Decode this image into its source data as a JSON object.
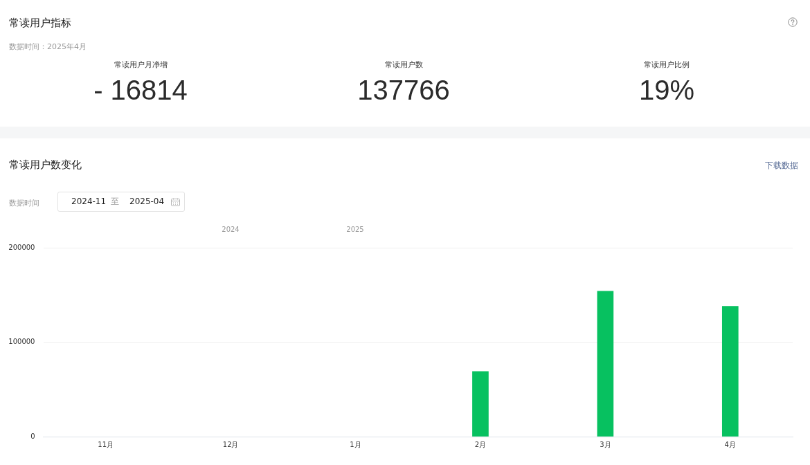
{
  "chart_data": [
    {
      "type": "other",
      "title": "常读用户指标",
      "subtitle": "数据时间：2025年4月",
      "annotations": [
        "常读用户月净增",
        "- 16814",
        "常读用户数",
        "137766",
        "常读用户比例",
        "19%"
      ]
    },
    {
      "type": "bar",
      "title": "常读用户数变化",
      "categories": [
        "11月",
        "12月",
        "1月",
        "2月",
        "3月",
        "4月"
      ],
      "values": [
        null,
        null,
        null,
        69000,
        154000,
        138000
      ],
      "color": "#07c160",
      "ylim": [
        0,
        200000
      ],
      "yticks": [
        0,
        100000,
        200000
      ],
      "grid": "y",
      "annotations": [
        "下载数据",
        "数据时间",
        "2024-11",
        "至",
        "2025-04",
        "2024",
        "2025"
      ]
    }
  ]
}
